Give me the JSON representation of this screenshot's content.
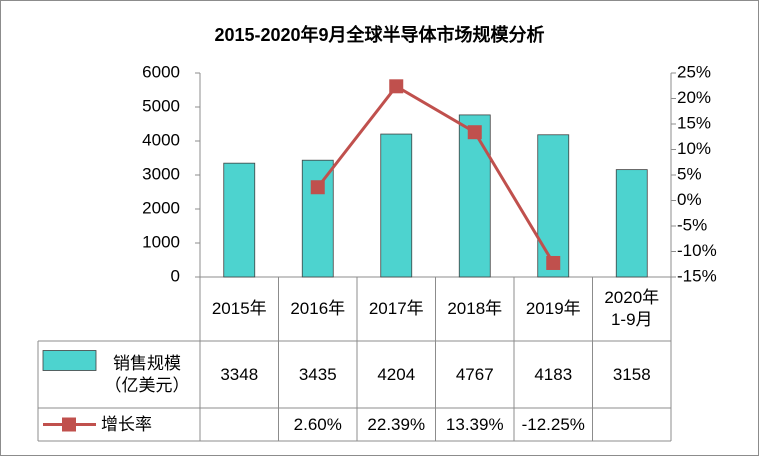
{
  "chart_data": {
    "type": "combo",
    "title": "2015-2020年9月全球半导体市场规模分析",
    "categories": [
      "2015年",
      "2016年",
      "2017年",
      "2018年",
      "2019年",
      "2020年\n1-9月"
    ],
    "series": [
      {
        "name": "销售规模\n（亿美元）",
        "type": "bar",
        "color": "#4dd3cf",
        "values": [
          3348,
          3435,
          4204,
          4767,
          4183,
          3158
        ]
      },
      {
        "name": "增长率",
        "type": "line",
        "axis": "y2",
        "color": "#c0504d",
        "values": [
          null,
          2.6,
          22.39,
          13.39,
          -12.25,
          null
        ],
        "value_labels": [
          null,
          "2.60%",
          "22.39%",
          "13.39%",
          "-12.25%",
          null
        ]
      }
    ],
    "ylim": [
      0,
      6000
    ],
    "yticks": [
      0,
      1000,
      2000,
      3000,
      4000,
      5000,
      6000
    ],
    "y2lim": [
      -15,
      25
    ],
    "y2ticks": [
      {
        "value": -15,
        "label": "-15%"
      },
      {
        "value": -10,
        "label": "-10%"
      },
      {
        "value": -5,
        "label": "-5%"
      },
      {
        "value": 0,
        "label": "0%"
      },
      {
        "value": 5,
        "label": "5%"
      },
      {
        "value": 10,
        "label": "10%"
      },
      {
        "value": 15,
        "label": "15%"
      },
      {
        "value": 20,
        "label": "20%"
      },
      {
        "value": 25,
        "label": "25%"
      }
    ],
    "data_table": true
  }
}
